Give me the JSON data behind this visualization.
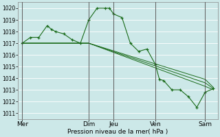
{
  "background_color": "#cce8e8",
  "plot_bg_color": "#cce8e8",
  "grid_color": "#ffffff",
  "line_color": "#1a6b1a",
  "xlabel": "Pression niveau de la mer( hPa )",
  "ylim": [
    1010.5,
    1020.5
  ],
  "yticks": [
    1011,
    1012,
    1013,
    1014,
    1015,
    1016,
    1017,
    1018,
    1019,
    1020
  ],
  "day_labels": [
    "Mer",
    "Dim",
    "Jeu",
    "Ven",
    "Sam"
  ],
  "day_positions": [
    0.5,
    8.5,
    11.5,
    16.5,
    22.5
  ],
  "xlim": [
    0,
    24
  ],
  "series1_x": [
    0.5,
    1.5,
    2.5,
    3.5,
    4.0,
    4.5,
    5.5,
    6.5,
    7.5,
    8.5,
    9.5,
    10.5,
    11.0,
    11.5,
    12.5,
    13.5,
    14.5,
    15.5,
    16.5,
    17.0,
    17.5,
    18.5,
    19.5,
    20.5,
    21.5,
    22.5,
    23.5
  ],
  "series1_y": [
    1017.0,
    1017.5,
    1017.5,
    1018.5,
    1018.2,
    1018.0,
    1017.8,
    1017.3,
    1017.0,
    1019.0,
    1020.0,
    1020.0,
    1020.0,
    1019.5,
    1019.2,
    1017.0,
    1016.3,
    1016.5,
    1015.2,
    1013.9,
    1013.8,
    1013.0,
    1013.0,
    1012.4,
    1011.5,
    1012.8,
    1013.1
  ],
  "trend1_x": [
    0.5,
    8.5,
    22.5,
    23.5
  ],
  "trend1_y": [
    1017.0,
    1017.0,
    1013.3,
    1013.0
  ],
  "trend2_x": [
    0.5,
    8.5,
    22.5,
    23.5
  ],
  "trend2_y": [
    1017.0,
    1017.0,
    1013.6,
    1013.1
  ],
  "trend3_x": [
    0.5,
    8.5,
    22.5,
    23.5
  ],
  "trend3_y": [
    1017.0,
    1017.0,
    1013.9,
    1013.2
  ],
  "vline_positions": [
    0.5,
    8.5,
    11.5,
    16.5,
    22.5
  ],
  "vline_color": "#444444"
}
